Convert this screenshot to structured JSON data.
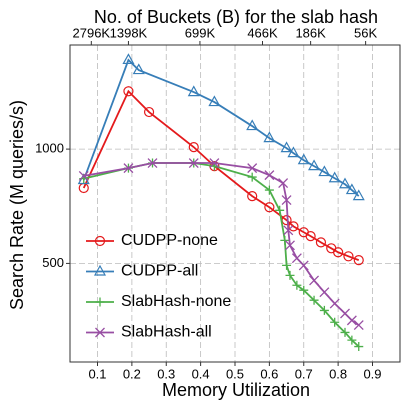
{
  "chart_data": {
    "type": "line",
    "title": "No. of Buckets (B) for the slab hash",
    "xlabel": "Memory Utilization",
    "ylabel": "Search Rate (M queries/s)",
    "xlim": [
      0.02,
      0.98
    ],
    "xticks": [
      0.1,
      0.2,
      0.3,
      0.4,
      0.5,
      0.6,
      0.7,
      0.8,
      0.9
    ],
    "x2ticks": [
      {
        "value": 0.082,
        "label": "2796K"
      },
      {
        "value": 0.19,
        "label": "1398K"
      },
      {
        "value": 0.398,
        "label": "699K"
      },
      {
        "value": 0.58,
        "label": "466K"
      },
      {
        "value": 0.72,
        "label": "186K"
      },
      {
        "value": 0.88,
        "label": "56K"
      }
    ],
    "ylim": [
      275,
      1880
    ],
    "yticks": [
      500,
      1000
    ],
    "ylog": true,
    "grid": true,
    "legend": "left",
    "series": [
      {
        "name": "CUDPP-none",
        "color": "#e41a1c",
        "marker": "circle",
        "x": [
          0.06,
          0.19,
          0.25,
          0.38,
          0.44,
          0.55,
          0.6,
          0.65,
          0.67,
          0.7,
          0.72,
          0.75,
          0.78,
          0.8,
          0.83,
          0.86
        ],
        "values": [
          790,
          1420,
          1252,
          1012,
          902,
          752,
          703,
          650,
          626,
          604,
          590,
          568,
          548,
          535,
          522,
          510
        ]
      },
      {
        "name": "CUDPP-all",
        "color": "#377eb8",
        "marker": "triangle",
        "x": [
          0.06,
          0.19,
          0.22,
          0.38,
          0.44,
          0.55,
          0.6,
          0.65,
          0.67,
          0.7,
          0.73,
          0.76,
          0.79,
          0.82,
          0.84,
          0.86
        ],
        "values": [
          829,
          1717,
          1615,
          1413,
          1330,
          1150,
          1069,
          1006,
          976,
          935,
          902,
          870,
          838,
          808,
          780,
          752
        ]
      },
      {
        "name": "SlabHash-none",
        "color": "#4daf4a",
        "marker": "plus",
        "x": [
          0.06,
          0.19,
          0.26,
          0.38,
          0.44,
          0.55,
          0.6,
          0.63,
          0.645,
          0.65,
          0.66,
          0.68,
          0.7,
          0.73,
          0.76,
          0.79,
          0.82,
          0.84,
          0.86
        ],
        "values": [
          836,
          891,
          919,
          919,
          902,
          844,
          780,
          690,
          575,
          494,
          465,
          438,
          425,
          400,
          376,
          350,
          329,
          314,
          302
        ]
      },
      {
        "name": "SlabHash-all",
        "color": "#984ea3",
        "marker": "cross",
        "x": [
          0.06,
          0.19,
          0.26,
          0.38,
          0.44,
          0.55,
          0.6,
          0.64,
          0.65,
          0.655,
          0.66,
          0.68,
          0.7,
          0.73,
          0.76,
          0.79,
          0.82,
          0.84,
          0.86
        ],
        "values": [
          850,
          891,
          919,
          919,
          919,
          891,
          854,
          814,
          734,
          611,
          558,
          516,
          494,
          451,
          420,
          392,
          369,
          354,
          344
        ]
      }
    ]
  }
}
